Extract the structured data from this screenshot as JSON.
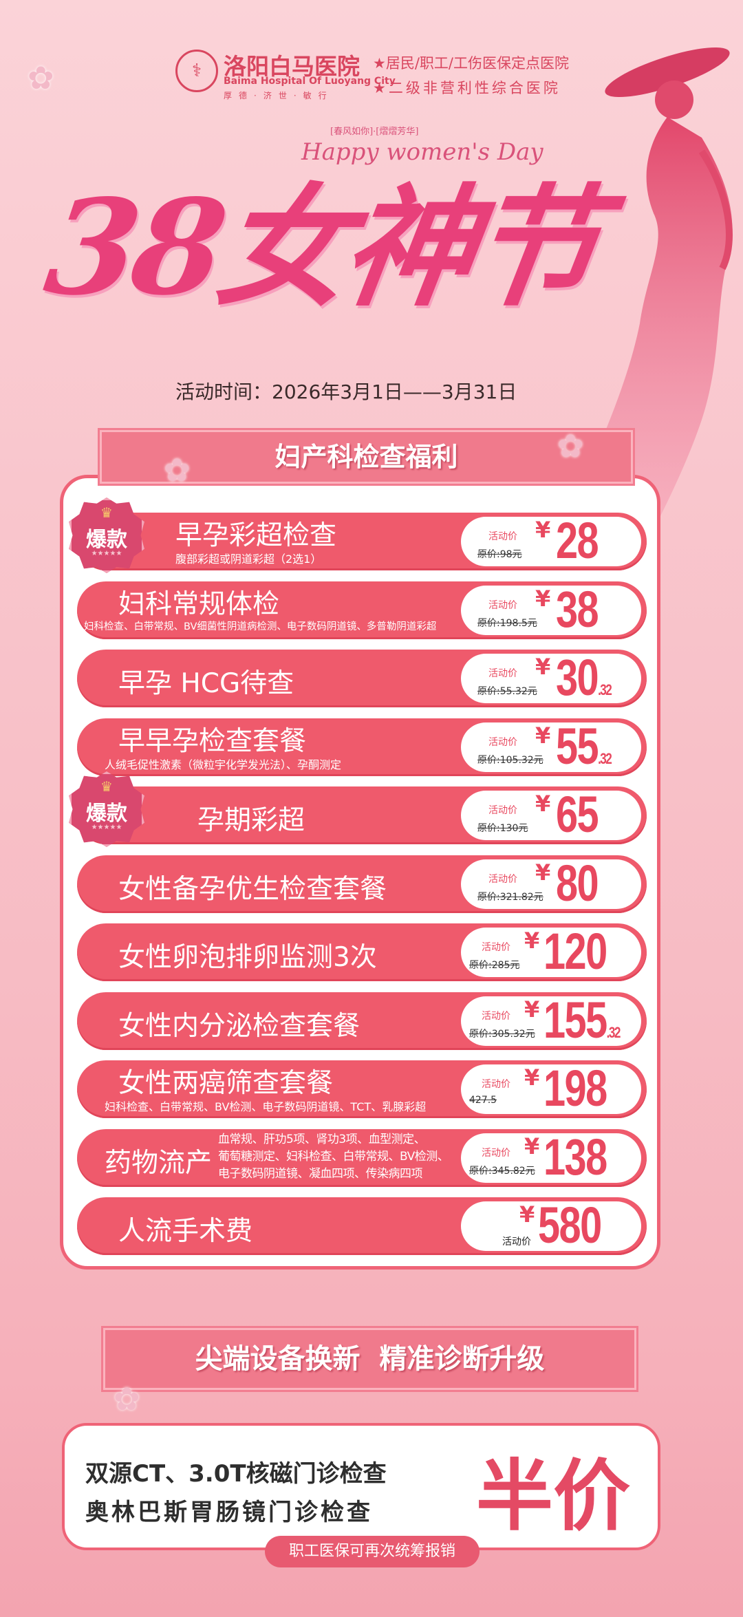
{
  "header": {
    "hospital_name": "洛阳白马医院",
    "hospital_name_en": "Baima Hospital Of Luoyang City",
    "motto": "厚德·济世·敏行",
    "taglines": [
      "★居民/职工/工伤医保定点医院",
      "★二级非营利性综合医院"
    ]
  },
  "hero": {
    "title": "38女神节",
    "subtitle_cn": "[春风如你]·[熠熠芳华]",
    "subtitle_en": "Happy women's Day",
    "date": "活动时间：2026年3月1日——3月31日"
  },
  "section1": {
    "title": "妇产科检查福利",
    "badge_label": "爆款",
    "badge_stars": "★★★★★",
    "items": [
      {
        "name": "早孕彩超检查",
        "sub": "腹部彩超或阴道彩超（2选1）",
        "label": "活动价",
        "orig": "原价:98元",
        "price": "28",
        "dec": "",
        "hot": true
      },
      {
        "name": "妇科常规体检",
        "sub": "妇科检查、白带常规、BV细菌性阴道病检测、电子数码阴道镜、多普勒阴道彩超",
        "label": "活动价",
        "orig": "原价:198.5元",
        "price": "38",
        "dec": ""
      },
      {
        "name": "早孕 HCG待查",
        "sub": "",
        "label": "活动价",
        "orig": "原价:55.32元",
        "price": "30",
        "dec": ".32"
      },
      {
        "name": "早早孕检查套餐",
        "sub": "人绒毛促性激素（微粒宇化学发光法）、孕酮测定",
        "label": "活动价",
        "orig": "原价:105.32元",
        "price": "55",
        "dec": ".32"
      },
      {
        "name": "孕期彩超",
        "sub": "",
        "label": "活动价",
        "orig": "原价:130元",
        "price": "65",
        "dec": "",
        "hot": true
      },
      {
        "name": "女性备孕优生检查套餐",
        "sub": "",
        "label": "活动价",
        "orig": "原价:321.82元",
        "price": "80",
        "dec": ""
      },
      {
        "name": "女性卵泡排卵监测3次",
        "sub": "",
        "label": "活动价",
        "orig": "原价:285元",
        "price": "120",
        "dec": ""
      },
      {
        "name": "女性内分泌检查套餐",
        "sub": "",
        "label": "活动价",
        "orig": "原价:305.32元",
        "price": "155",
        "dec": ".32"
      },
      {
        "name": "女性两癌筛查套餐",
        "sub": "妇科检查、白带常规、BV检测、电子数码阴道镜、TCT、乳腺彩超",
        "label": "活动价",
        "orig": "427.5",
        "price": "198",
        "dec": ""
      },
      {
        "name": "药物流产",
        "sub3": "血常规、肝功5项、肾功3项、血型测定、\n葡萄糖测定、妇科检查、白带常规、BV检测、\n电子数码阴道镜、凝血四项、传染病四项",
        "label": "活动价",
        "orig": "原价:345.82元",
        "price": "138",
        "dec": ""
      },
      {
        "name": "人流手术费",
        "sub": "",
        "label": "活动价",
        "orig": "",
        "price": "580",
        "dec": "",
        "label_below": true
      }
    ]
  },
  "section2": {
    "title": "尖端设备换新  精准诊断升级",
    "lines": [
      "双源CT、3.0T核磁门诊检查",
      "奥林巴斯胃肠镜门诊检查"
    ],
    "highlight": "半价",
    "note": "职工医保可再次统筹报销"
  },
  "colors": {
    "primary": "#ef5a6c",
    "accent": "#e8485f",
    "background": "#f9c6cd",
    "title": "#e8407a"
  }
}
